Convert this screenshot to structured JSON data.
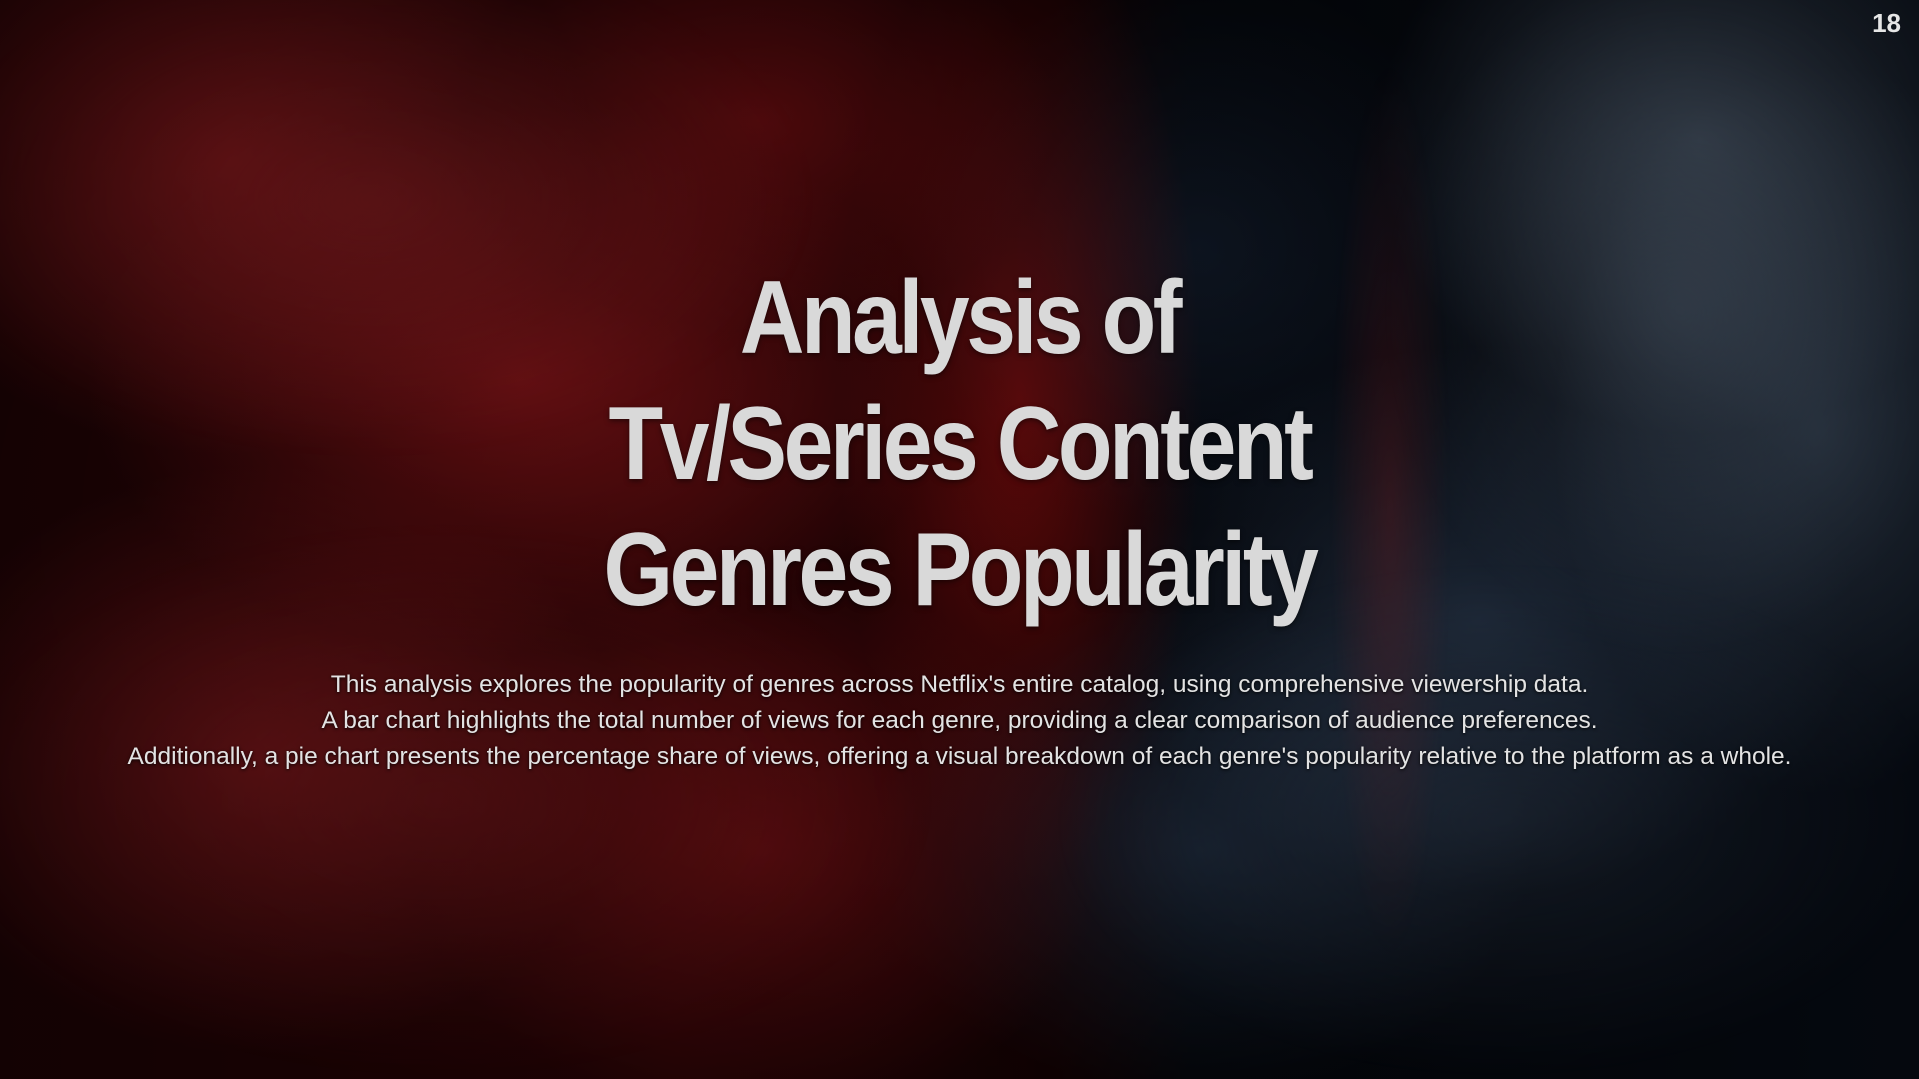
{
  "slide": {
    "page_number": "18",
    "title_lines": [
      "Analysis of",
      "Tv/Series Content",
      "Genres Popularity"
    ],
    "description_lines": [
      "This analysis explores the popularity of genres across Netflix's entire catalog, using comprehensive viewership data.",
      "A bar chart highlights the total number of views for each genre, providing a clear comparison of audience preferences.",
      "Additionally, a pie chart presents the percentage share of views, offering a visual breakdown of each genre's popularity relative to the platform as a whole."
    ]
  },
  "colors": {
    "text": "#d9d9d9",
    "left_smoke": "#a81c22",
    "right_smoke": "#8aa4c4",
    "background": "#050507"
  }
}
